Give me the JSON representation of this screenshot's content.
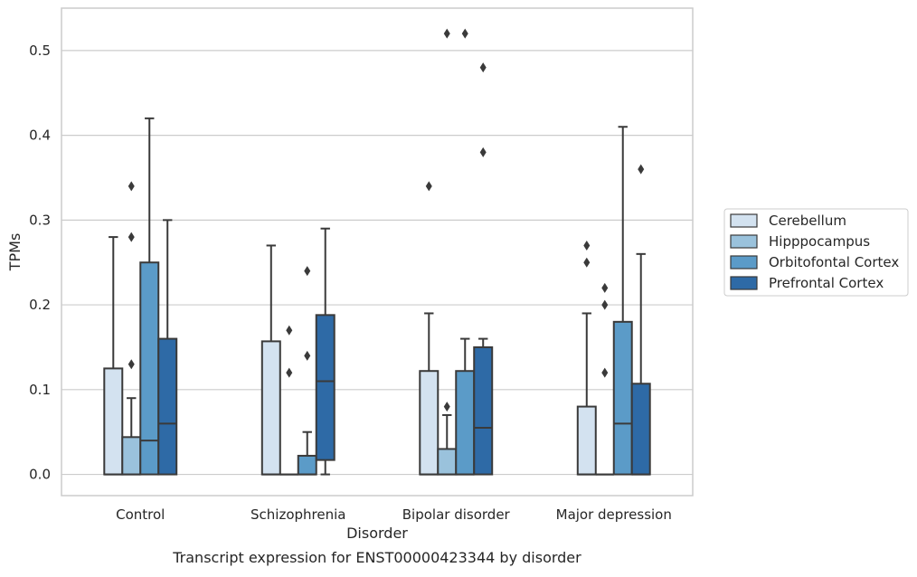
{
  "chart_data": {
    "type": "box",
    "caption": "Transcript expression for ENST00000423344 by disorder",
    "xlabel": "Disorder",
    "ylabel": "TPMs",
    "ylim": [
      -0.025,
      0.55
    ],
    "yticks": [
      0.0,
      0.1,
      0.2,
      0.3,
      0.4,
      0.5
    ],
    "ytick_labels": [
      "0.0",
      "0.1",
      "0.2",
      "0.3",
      "0.4",
      "0.5"
    ],
    "grid": true,
    "legend_position": "right",
    "categories": [
      "Control",
      "Schizophrenia",
      "Bipolar disorder",
      "Major depression"
    ],
    "series": [
      {
        "name": "Cerebellum",
        "color": "#d3e2f0",
        "boxes": [
          {
            "whislo": 0.0,
            "q1": 0.0,
            "med": 0.0,
            "q3": 0.125,
            "whishi": 0.28,
            "fliers": []
          },
          {
            "whislo": 0.0,
            "q1": 0.0,
            "med": 0.0,
            "q3": 0.157,
            "whishi": 0.27,
            "fliers": []
          },
          {
            "whislo": 0.0,
            "q1": 0.0,
            "med": 0.0,
            "q3": 0.122,
            "whishi": 0.19,
            "fliers": [
              0.34
            ]
          },
          {
            "whislo": 0.0,
            "q1": 0.0,
            "med": 0.0,
            "q3": 0.08,
            "whishi": 0.19,
            "fliers": [
              0.25,
              0.27
            ]
          }
        ]
      },
      {
        "name": "Hipppocampus",
        "color": "#9ac2dc",
        "boxes": [
          {
            "whislo": 0.0,
            "q1": 0.0,
            "med": 0.0,
            "q3": 0.044,
            "whishi": 0.09,
            "fliers": [
              0.13,
              0.28,
              0.34
            ]
          },
          {
            "whislo": 0.0,
            "q1": 0.0,
            "med": 0.0,
            "q3": 0.0,
            "whishi": 0.0,
            "fliers": [
              0.12,
              0.17
            ]
          },
          {
            "whislo": 0.0,
            "q1": 0.0,
            "med": 0.0,
            "q3": 0.03,
            "whishi": 0.07,
            "fliers": [
              0.08,
              0.52
            ]
          },
          {
            "whislo": 0.0,
            "q1": 0.0,
            "med": 0.0,
            "q3": 0.0,
            "whishi": 0.0,
            "fliers": [
              0.12,
              0.2,
              0.22
            ]
          }
        ]
      },
      {
        "name": "Orbitofontal Cortex",
        "color": "#5b9bc8",
        "boxes": [
          {
            "whislo": 0.0,
            "q1": 0.0,
            "med": 0.04,
            "q3": 0.25,
            "whishi": 0.42,
            "fliers": []
          },
          {
            "whislo": 0.0,
            "q1": 0.0,
            "med": 0.0,
            "q3": 0.022,
            "whishi": 0.05,
            "fliers": [
              0.14,
              0.24
            ]
          },
          {
            "whislo": 0.0,
            "q1": 0.0,
            "med": 0.0,
            "q3": 0.122,
            "whishi": 0.16,
            "fliers": [
              0.52
            ]
          },
          {
            "whislo": 0.0,
            "q1": 0.0,
            "med": 0.06,
            "q3": 0.18,
            "whishi": 0.41,
            "fliers": []
          }
        ]
      },
      {
        "name": "Prefrontal Cortex",
        "color": "#2e6aa6",
        "boxes": [
          {
            "whislo": 0.0,
            "q1": 0.0,
            "med": 0.06,
            "q3": 0.16,
            "whishi": 0.3,
            "fliers": []
          },
          {
            "whislo": 0.0,
            "q1": 0.017,
            "med": 0.11,
            "q3": 0.188,
            "whishi": 0.29,
            "fliers": []
          },
          {
            "whislo": 0.0,
            "q1": 0.0,
            "med": 0.055,
            "q3": 0.15,
            "whishi": 0.16,
            "fliers": [
              0.38,
              0.48
            ]
          },
          {
            "whislo": 0.0,
            "q1": 0.0,
            "med": 0.0,
            "q3": 0.107,
            "whishi": 0.26,
            "fliers": [
              0.36
            ]
          }
        ]
      }
    ]
  }
}
